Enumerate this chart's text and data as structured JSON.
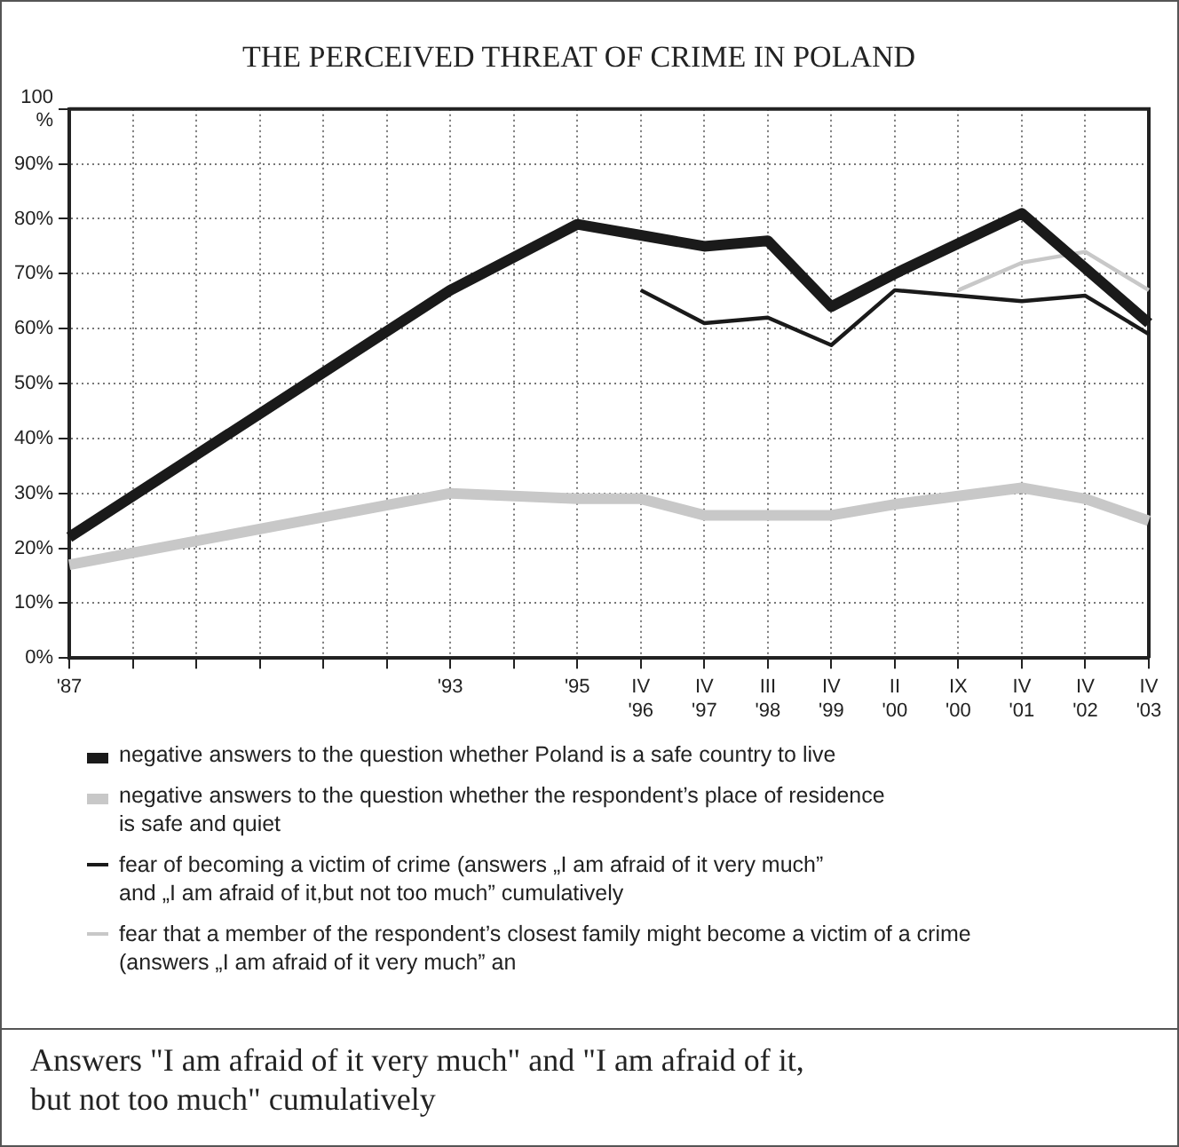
{
  "chart_data": {
    "type": "line",
    "title": "THE PERCEIVED THREAT OF CRIME IN POLAND",
    "categories": [
      "'87",
      null,
      null,
      null,
      null,
      null,
      "'93",
      null,
      "'95",
      "IV\n'96",
      "IV\n'97",
      "III\n'98",
      "IV\n'99",
      "II\n'00",
      "IX\n'00",
      "IV\n'01",
      "IV\n'02",
      "IV\n'03"
    ],
    "series": [
      {
        "name": "negative answers to the question whether Poland is a safe country to live",
        "color": "#1a1a1a",
        "values": [
          22,
          null,
          null,
          null,
          null,
          null,
          67,
          null,
          79,
          77,
          75,
          76,
          64,
          70,
          null,
          81,
          null,
          61
        ]
      },
      {
        "name": "negative answers to the question whether the respondent’s place of residence\nis safe and quiet",
        "color": "#c8c8c8",
        "values": [
          17,
          null,
          null,
          null,
          null,
          null,
          30,
          null,
          29,
          29,
          26,
          26,
          26,
          28,
          29.5,
          31,
          29,
          25
        ]
      },
      {
        "name": "fear of becoming a victim of crime (answers „I am afraid of it very much”\nand „I am afraid of it,but not too much” cumulatively",
        "color": "#1a1a1a",
        "values": [
          null,
          null,
          null,
          null,
          null,
          null,
          null,
          null,
          null,
          67,
          61,
          62,
          57,
          67,
          66,
          65,
          66,
          59
        ]
      },
      {
        "name": "fear that a member of the respondent’s closest family might become a victim of a crime\n(answers „I am afraid of it very much” an",
        "color": "#c8c8c8",
        "values": [
          null,
          null,
          null,
          null,
          null,
          null,
          null,
          null,
          null,
          null,
          null,
          null,
          null,
          null,
          67,
          72,
          74,
          67
        ]
      }
    ],
    "ylim": [
      0,
      100
    ],
    "yticks": [
      {
        "value": 0,
        "label": "0%"
      },
      {
        "value": 10,
        "label": "10%"
      },
      {
        "value": 20,
        "label": "20%"
      },
      {
        "value": 30,
        "label": "30%"
      },
      {
        "value": 40,
        "label": "40%"
      },
      {
        "value": 50,
        "label": "50%"
      },
      {
        "value": 60,
        "label": "60%"
      },
      {
        "value": 70,
        "label": "70%"
      },
      {
        "value": 80,
        "label": "80%"
      },
      {
        "value": 90,
        "label": "90%"
      },
      {
        "value": 100,
        "label": "100\n%"
      }
    ],
    "grid": true,
    "legend": "bottom",
    "marker": "none",
    "line_style": "solid",
    "annotations": [
      "Answers \"I am afraid of it very much\" and \"I am afraid of it,\nbut not too much\" cumulatively"
    ]
  }
}
